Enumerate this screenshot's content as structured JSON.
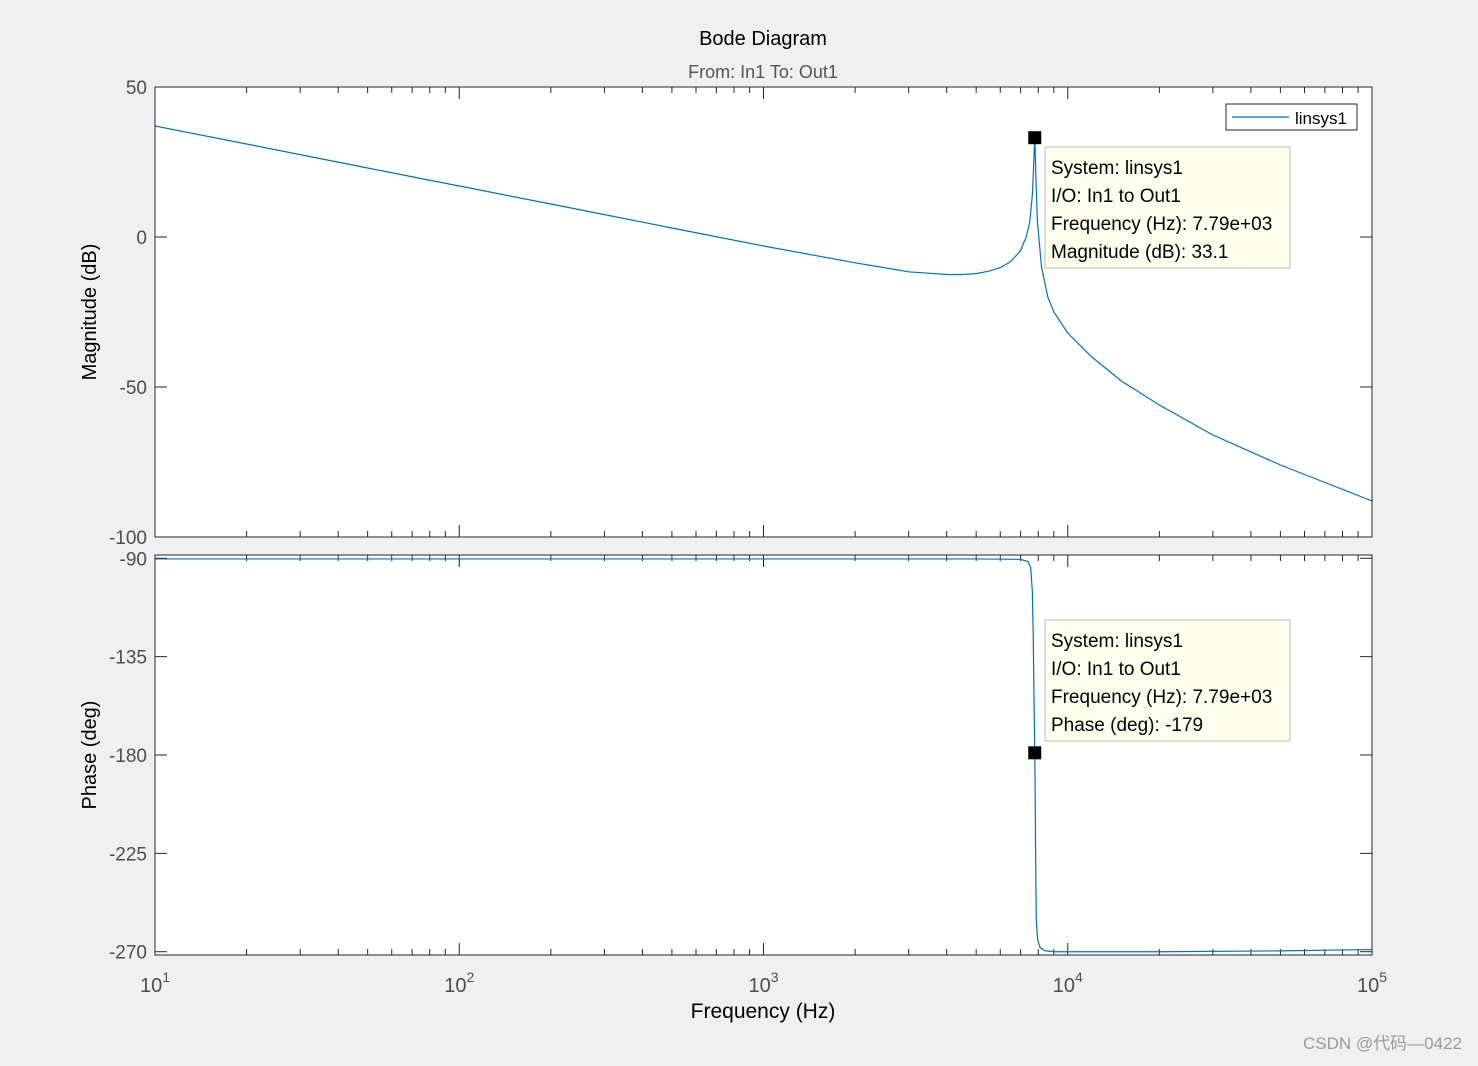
{
  "figure": {
    "title": "Bode Diagram",
    "subtitle": "From: In1  To: Out1",
    "watermark": "CSDN @代码—0422",
    "colors": {
      "background": "#f0f0f0",
      "axes": "#ffffff",
      "line": "#0072bd",
      "tick_text": "#4d4d4d",
      "datatip_bg": "#ffffee"
    }
  },
  "chart_data": [
    {
      "type": "line",
      "name": "magnitude",
      "ylabel": "Magnitude (dB)",
      "xscale": "log",
      "xlim": [
        10,
        100000
      ],
      "ylim": [
        -100,
        50
      ],
      "yticks": [
        50,
        0,
        -50,
        -100
      ],
      "x_tick_labels": [
        {
          "base": "10",
          "exp": "1"
        },
        {
          "base": "10",
          "exp": "2"
        },
        {
          "base": "10",
          "exp": "3"
        },
        {
          "base": "10",
          "exp": "4"
        },
        {
          "base": "10",
          "exp": "5"
        }
      ],
      "legend": {
        "entries": [
          "linsys1"
        ],
        "position": "top-right"
      },
      "series": [
        {
          "name": "linsys1",
          "x": [
            10,
            20,
            50,
            100,
            200,
            500,
            1000,
            2000,
            3000,
            4000,
            4500,
            5000,
            5500,
            6000,
            6500,
            7000,
            7300,
            7500,
            7650,
            7720,
            7760,
            7790,
            7820,
            7860,
            7950,
            8200,
            8600,
            9000,
            10000,
            12000,
            15000,
            20000,
            30000,
            50000,
            100000
          ],
          "y": [
            37,
            31,
            23,
            17,
            11,
            3,
            -3,
            -8.6,
            -11.6,
            -12.5,
            -12.5,
            -12.2,
            -11.4,
            -10.2,
            -8.2,
            -4.5,
            0,
            5,
            14,
            23,
            29,
            33.1,
            29,
            19,
            5,
            -10,
            -20,
            -25,
            -32,
            -40,
            -48,
            -56,
            -66,
            -76,
            -88
          ]
        }
      ],
      "datatip": {
        "frequency": 7790,
        "value": 33.1,
        "lines": [
          "System: linsys1",
          "I/O: In1 to Out1",
          "Frequency (Hz): 7.79e+03",
          "Magnitude (dB): 33.1"
        ]
      }
    },
    {
      "type": "line",
      "name": "phase",
      "ylabel": "Phase (deg)",
      "xlabel": "Frequency  (Hz)",
      "xscale": "log",
      "xlim": [
        10,
        100000
      ],
      "ylim": [
        -271.5,
        -88.5
      ],
      "yticks": [
        -90,
        -135,
        -180,
        -225,
        -270
      ],
      "series": [
        {
          "name": "linsys1",
          "x": [
            10,
            100,
            1000,
            5000,
            7000,
            7400,
            7550,
            7650,
            7700,
            7740,
            7770,
            7790,
            7810,
            7840,
            7880,
            7950,
            8100,
            8400,
            9000,
            10000,
            20000,
            50000,
            100000
          ],
          "y": [
            -90.3,
            -90.3,
            -90.3,
            -90.3,
            -90.5,
            -91.5,
            -94,
            -105,
            -125,
            -150,
            -168,
            -179,
            -192,
            -225,
            -255,
            -264,
            -268,
            -269.5,
            -270,
            -270,
            -270,
            -269.6,
            -269
          ],
          "color": "#0072bd"
        }
      ],
      "datatip": {
        "frequency": 7790,
        "value": -179,
        "lines": [
          "System: linsys1",
          "I/O: In1 to Out1",
          "Frequency (Hz): 7.79e+03",
          "Phase (deg): -179"
        ]
      }
    }
  ]
}
